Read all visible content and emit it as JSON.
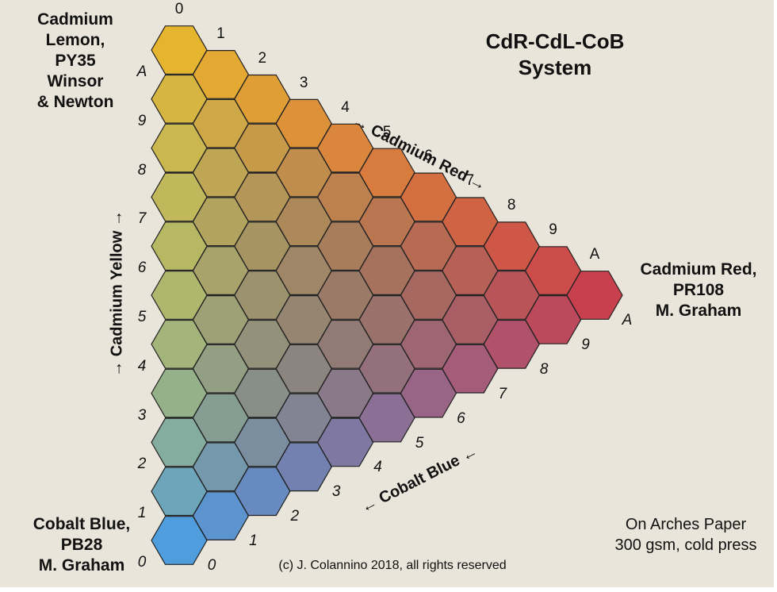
{
  "title": {
    "line1": "CdR-CdL-CoB",
    "line2": "System"
  },
  "corners": {
    "cadmium_lemon": {
      "line1": "Cadmium",
      "line2": "Lemon, PY35",
      "line3": "Winsor",
      "line4": "& Newton"
    },
    "cadmium_red": {
      "line1": "Cadmium Red,",
      "line2": "PR108",
      "line3": "M. Graham"
    },
    "cobalt_blue": {
      "line1": "Cobalt Blue,",
      "line2": "PB28",
      "line3": "M. Graham"
    }
  },
  "axes": {
    "cadmium_red": "→ Cadmium Red →",
    "cadmium_yellow": "→ Cadmium Yellow →",
    "cobalt_blue": "← Cobalt Blue ←"
  },
  "scales": {
    "top_edge": [
      "0",
      "1",
      "2",
      "3",
      "4",
      "5",
      "6",
      "7",
      "8",
      "9",
      "A"
    ],
    "left_edge": [
      "A",
      "9",
      "8",
      "7",
      "6",
      "5",
      "4",
      "3",
      "2",
      "1",
      "0"
    ],
    "bottom_edge": [
      "0",
      "1",
      "2",
      "3",
      "4",
      "5",
      "6",
      "7",
      "8",
      "9",
      "A"
    ]
  },
  "paper_note": {
    "line1": "On Arches Paper",
    "line2": "300 gsm, cold press"
  },
  "copyright": "(c) J. Colannino 2018, all rights reserved",
  "colors": {
    "background": "#e9e5da",
    "cadmium_lemon": "#e6b530",
    "cadmium_red": "#c8404e",
    "cobalt_blue": "#4f9ddc",
    "yellow_green_peak": "#d2d042",
    "hex_border": "#222222"
  }
}
